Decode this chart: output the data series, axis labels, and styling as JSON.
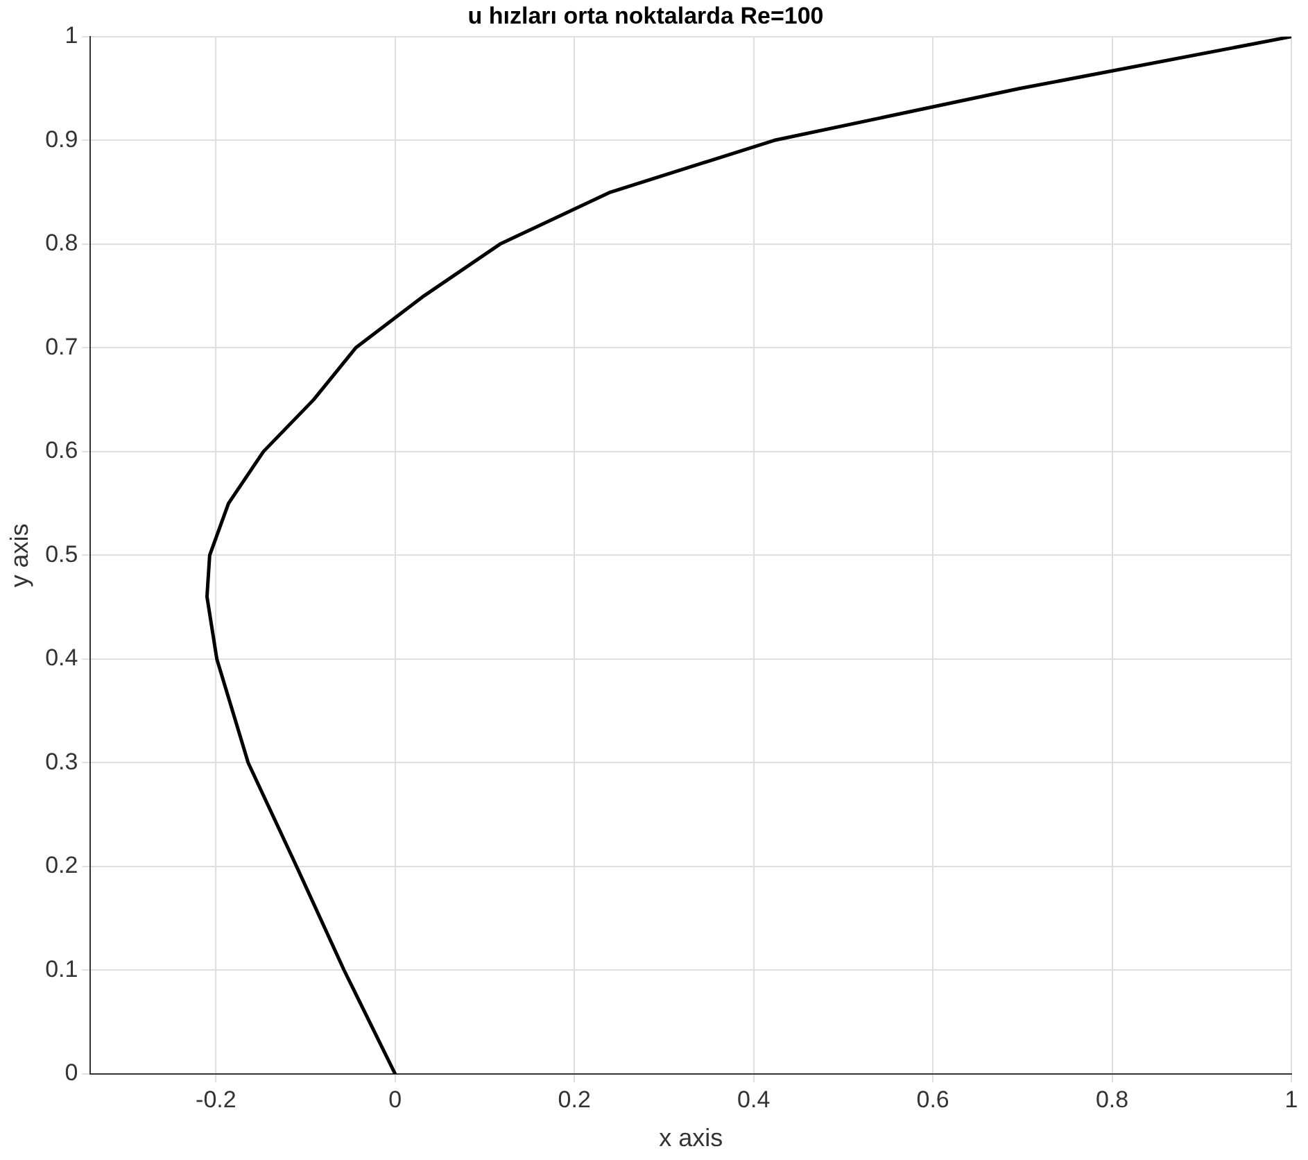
{
  "chart_data": {
    "type": "line",
    "title": "u hızları orta noktalarda Re=100",
    "xlabel": "x axis",
    "ylabel": "y axis",
    "xlim": [
      -0.34,
      1
    ],
    "xticks": [
      -0.2,
      0,
      0.2,
      0.4,
      0.6,
      0.8,
      1
    ],
    "ylim": [
      0,
      1
    ],
    "yticks": [
      0,
      0.1,
      0.2,
      0.3,
      0.4,
      0.5,
      0.6,
      0.7,
      0.8,
      0.9,
      1
    ],
    "grid": true,
    "legend": false,
    "marker": "none",
    "line_style": "solid",
    "series": [
      {
        "color": "#000000",
        "x": [
          0,
          -0.057,
          -0.11,
          -0.164,
          -0.199,
          -0.21,
          -0.207,
          -0.186,
          -0.147,
          -0.091,
          -0.044,
          0.032,
          0.117,
          0.24,
          0.423,
          0.697,
          1
        ],
        "values": [
          0,
          0.1,
          0.2,
          0.3,
          0.4,
          0.46,
          0.5,
          0.55,
          0.6,
          0.65,
          0.7,
          0.75,
          0.8,
          0.85,
          0.9,
          0.95,
          1
        ]
      }
    ]
  }
}
